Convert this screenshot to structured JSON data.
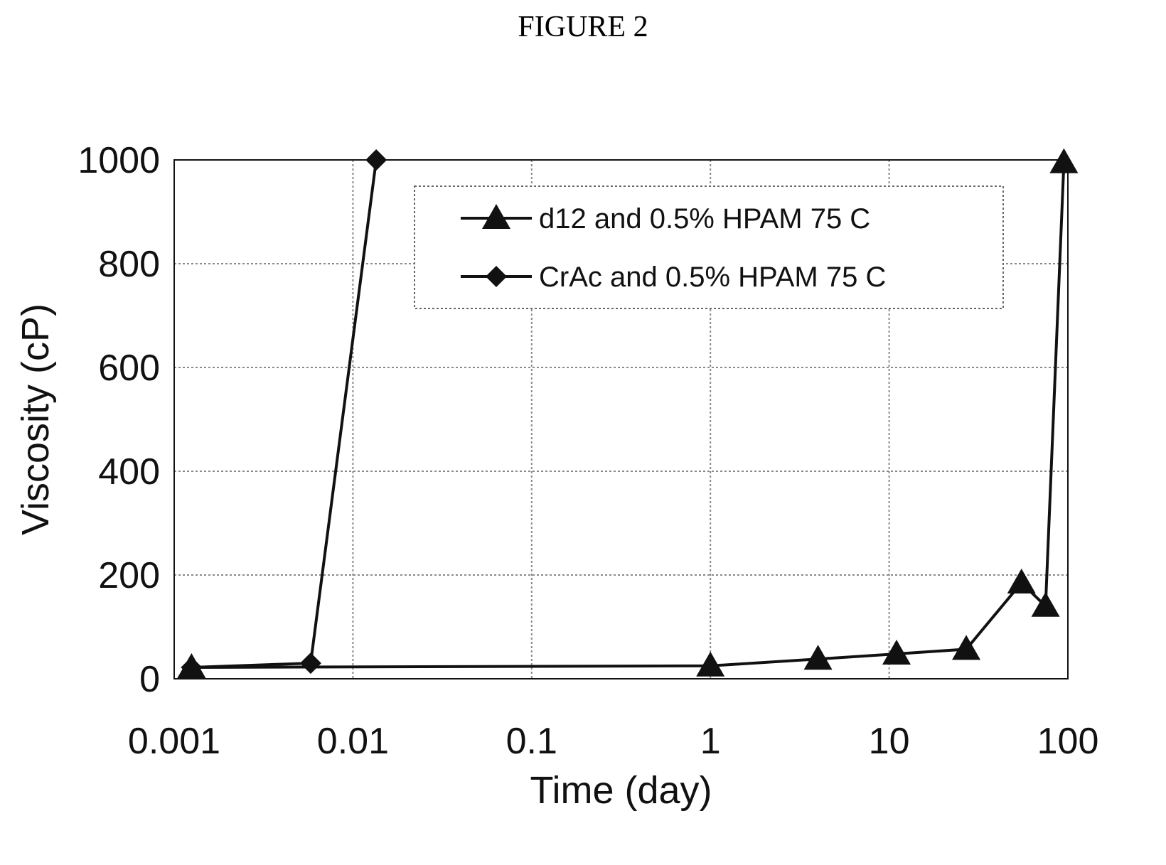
{
  "figure": {
    "title": "FIGURE 2"
  },
  "chart_data": {
    "type": "line",
    "title": "",
    "xlabel": "Time (day)",
    "ylabel": "Viscosity (cP)",
    "x_scale": "log",
    "xlim": [
      0.001,
      100
    ],
    "ylim": [
      0,
      1000
    ],
    "x_ticks": [
      "0.001",
      "0.01",
      "0.1",
      "1",
      "10",
      "100"
    ],
    "y_ticks": [
      "0",
      "200",
      "400",
      "600",
      "800",
      "1000"
    ],
    "grid": true,
    "legend_position": "top-right",
    "series": [
      {
        "name": "d12 and 0.5% HPAM 75 C",
        "marker": "triangle",
        "x": [
          0.00125,
          1,
          4,
          11,
          27,
          55,
          75,
          95
        ],
        "y": [
          22,
          25,
          38,
          48,
          57,
          185,
          140,
          995
        ]
      },
      {
        "name": "CrAc and 0.5% HPAM 75 C",
        "marker": "diamond",
        "x": [
          0.00125,
          0.0058,
          0.0135
        ],
        "y": [
          22,
          30,
          1000
        ]
      }
    ],
    "colors": {
      "line": "#111111",
      "grid": "#8a8a8a"
    }
  }
}
